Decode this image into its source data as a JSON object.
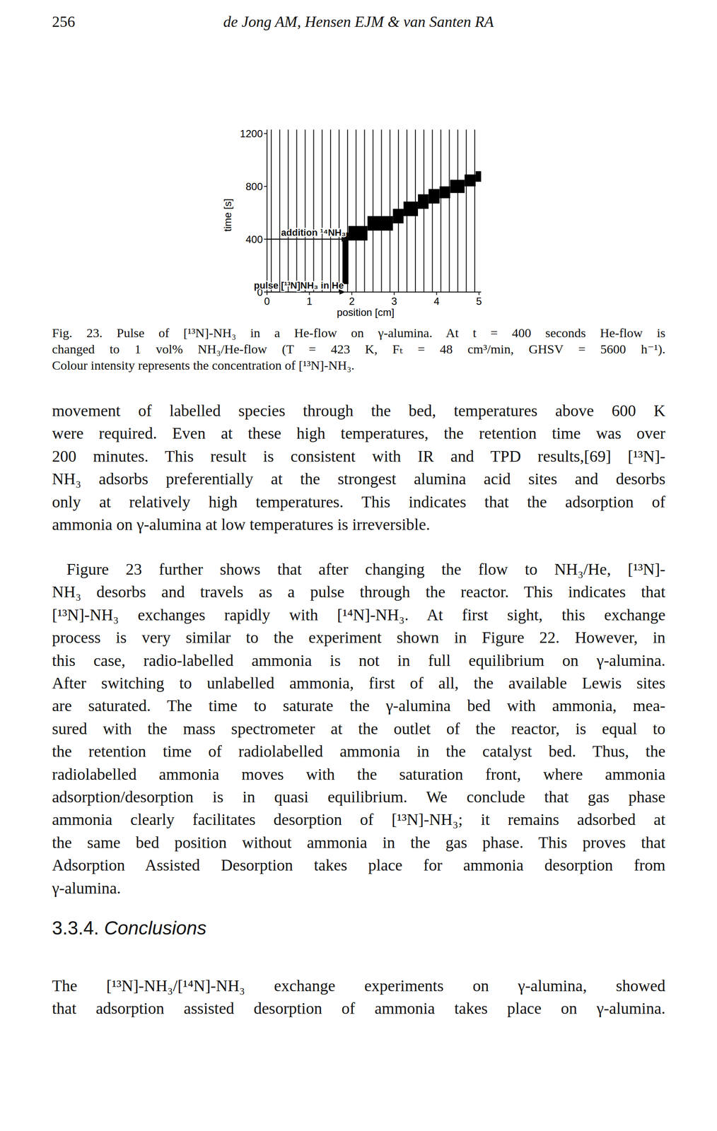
{
  "header": {
    "page_number": "256",
    "running_head": "de Jong AM, Hensen EJM & van Santen RA"
  },
  "chart_data": {
    "type": "range_bar",
    "x_label": "position [cm]",
    "y_label": "time [s]",
    "xlim": [
      0,
      5.05
    ],
    "ylim": [
      0,
      1230
    ],
    "xticks": [
      0,
      1,
      2,
      3,
      4,
      5
    ],
    "yticks": [
      0,
      400,
      800,
      1200
    ],
    "color": "#000000",
    "bin_edges": [
      0.1,
      0.3,
      0.5,
      0.7,
      0.9,
      1.1,
      1.3,
      1.5,
      1.7,
      1.9,
      2.1,
      2.3,
      2.5,
      2.7,
      2.9,
      3.1,
      3.3,
      3.5,
      3.7,
      3.9,
      4.1,
      4.3,
      4.5,
      4.7,
      4.9
    ],
    "blocks": {
      "x_start": [
        1.78,
        1.92,
        2.37,
        2.97,
        3.22,
        3.56,
        3.81,
        4.07,
        4.32,
        4.66,
        4.92
      ],
      "x_end": [
        1.92,
        2.37,
        2.97,
        3.22,
        3.56,
        3.81,
        4.07,
        4.32,
        4.66,
        4.92,
        5.05
      ],
      "t_start": [
        60,
        390,
        465,
        520,
        575,
        630,
        670,
        710,
        750,
        800,
        835
      ],
      "t_end": [
        450,
        500,
        575,
        630,
        685,
        740,
        780,
        800,
        850,
        890,
        915
      ]
    },
    "annotations": [
      {
        "text": "pulse [¹³N]NH₃ in He",
        "t": 0,
        "x_end": 1.85
      },
      {
        "text": "addition ¹⁴NH₃",
        "t": 400,
        "x_end": 1.9
      }
    ]
  },
  "caption": [
    "Fig. 23. Pulse of [¹³N]-NH₃ in a He-flow on γ-alumina. At t = 400 seconds He-flow is",
    "changed to 1 vol% NH₃/He-flow (T = 423 K, Fₜ = 48 cm³/min, GHSV = 5600 h⁻¹).",
    "Colour intensity represents the concentration of [¹³N]-NH₃."
  ],
  "paragraphs": [
    [
      "movement of labelled species through the bed, temperatures above 600 K",
      "were required. Even at these high temperatures, the retention time was over",
      "200 minutes. This result is consistent with IR and TPD results,[69] [¹³N]-",
      "NH₃ adsorbs preferentially at the strongest alumina acid sites and desorbs",
      "only at relatively high temperatures. This indicates that the adsorption of",
      "ammonia on γ-alumina at low temperatures is irreversible."
    ],
    [
      "Figure 23 further shows that after changing the flow to NH₃/He, [¹³N]-",
      "NH₃ desorbs and travels as a pulse through the reactor. This indicates that",
      "[¹³N]-NH₃ exchanges rapidly with [¹⁴N]-NH₃. At first sight, this exchange",
      "process is very similar to the experiment shown in Figure 22. However, in",
      "this case, radio-labelled ammonia is not in full equilibrium on γ-alumina.",
      "After switching to unlabelled ammonia, first of all, the available Lewis sites",
      "are saturated. The time to saturate the γ-alumina bed with ammonia, mea-",
      "sured with the mass spectrometer at the outlet of the reactor, is equal to",
      "the retention time of radiolabelled ammonia in the catalyst bed. Thus, the",
      "radiolabelled ammonia moves with the saturation front, where ammonia",
      "adsorption/desorption is in quasi equilibrium. We conclude that gas phase",
      "ammonia clearly facilitates desorption of [¹³N]-NH₃; it remains adsorbed at",
      "the same bed position without ammonia in the gas phase. This proves that",
      "Adsorption Assisted Desorption takes place for ammonia desorption from",
      "γ-alumina."
    ]
  ],
  "section": {
    "title": "3.3.4. Conclusions",
    "paragraphs": [
      [
        "The [¹³N]-NH₃/[¹⁴N]-NH₃ exchange experiments on γ-alumina, showed",
        "that adsorption assisted desorption of ammonia takes place on γ-alumina."
      ]
    ]
  }
}
